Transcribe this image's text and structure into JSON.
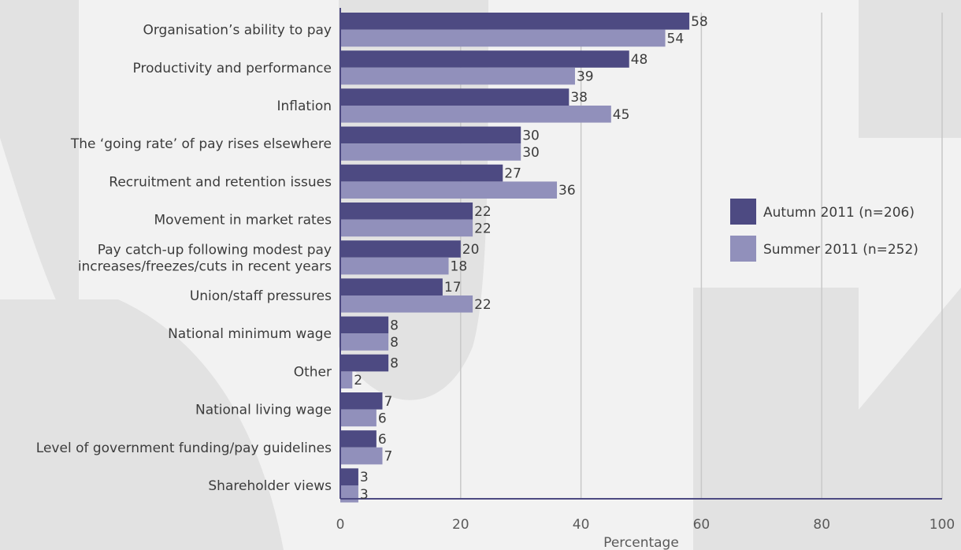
{
  "chart_data": {
    "type": "bar",
    "orientation": "horizontal",
    "categories": [
      "Organisation’s ability to pay",
      "Productivity and performance",
      "Inflation",
      "The ‘going rate’ of pay rises elsewhere",
      "Recruitment and retention issues",
      "Movement in market rates",
      "Pay catch-up following modest pay\nincreases/freezes/cuts in recent years",
      "Union/staff pressures",
      "National minimum wage",
      "Other",
      "National living wage",
      "Level of government funding/pay guidelines",
      "Shareholder views"
    ],
    "series": [
      {
        "name": "Autumn 2011 (n=206)",
        "color": "#4d4a82",
        "values": [
          58,
          48,
          38,
          30,
          27,
          22,
          20,
          17,
          8,
          8,
          7,
          6,
          3
        ]
      },
      {
        "name": "Summer 2011 (n=252)",
        "color": "#9190bb",
        "values": [
          54,
          39,
          45,
          30,
          36,
          22,
          18,
          22,
          8,
          2,
          6,
          7,
          3
        ]
      }
    ],
    "xlabel": "Percentage",
    "xlim": [
      0,
      100
    ],
    "xticks": [
      "0",
      "20",
      "40",
      "60",
      "80",
      "100"
    ],
    "grid": true,
    "legend_position": "right",
    "axis_color": "#4d4a82",
    "grid_color": "#c8c8c8",
    "background_color": "#f2f2f2",
    "watermark_color": "#e2e2e2"
  }
}
